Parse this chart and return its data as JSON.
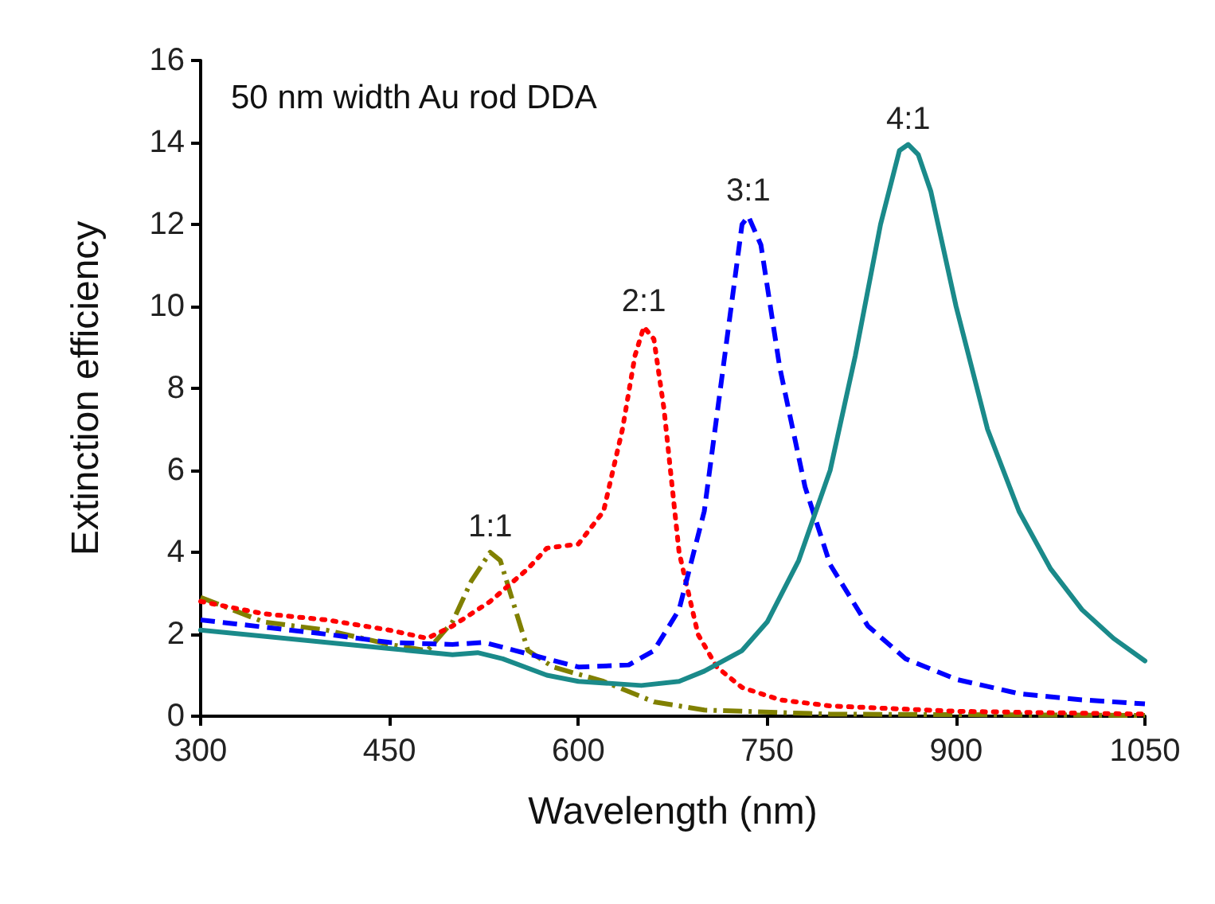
{
  "chart_data": {
    "type": "line",
    "title": "50 nm width Au rod DDA",
    "xlabel": "Wavelength (nm)",
    "ylabel": "Extinction efficiency",
    "xlim": [
      300,
      1050
    ],
    "xticks": [
      300,
      450,
      600,
      750,
      900,
      1050
    ],
    "ylim": [
      0,
      16
    ],
    "yticks": [
      0,
      2,
      4,
      6,
      8,
      10,
      12,
      14,
      16
    ],
    "grid": false,
    "legend": false,
    "marker": "none",
    "series": [
      {
        "name": "1:1",
        "color": "#808000",
        "line_style": "dashdot",
        "x": [
          300,
          350,
          400,
          450,
          480,
          500,
          515,
          530,
          538,
          550,
          560,
          580,
          620,
          660,
          700,
          800,
          1050
        ],
        "values": [
          2.9,
          2.3,
          2.1,
          1.75,
          1.6,
          2.3,
          3.3,
          4.0,
          3.8,
          2.6,
          1.6,
          1.2,
          0.85,
          0.35,
          0.15,
          0.05,
          0.02
        ]
      },
      {
        "name": "2:1",
        "color": "#ff0000",
        "line_style": "dotted",
        "x": [
          300,
          350,
          400,
          450,
          480,
          500,
          530,
          560,
          575,
          600,
          620,
          635,
          645,
          652,
          660,
          668,
          680,
          695,
          710,
          730,
          760,
          800,
          900,
          1050
        ],
        "values": [
          2.8,
          2.5,
          2.35,
          2.1,
          1.9,
          2.2,
          2.8,
          3.6,
          4.1,
          4.2,
          5,
          7,
          8.8,
          9.5,
          9.2,
          7.5,
          4,
          2,
          1.2,
          0.7,
          0.4,
          0.25,
          0.12,
          0.05
        ]
      },
      {
        "name": "3:1",
        "color": "#0000ff",
        "line_style": "dashed",
        "x": [
          300,
          400,
          450,
          500,
          525,
          550,
          600,
          640,
          660,
          680,
          700,
          715,
          730,
          735,
          745,
          760,
          780,
          800,
          830,
          860,
          900,
          950,
          1000,
          1050
        ],
        "values": [
          2.35,
          2.0,
          1.8,
          1.75,
          1.8,
          1.6,
          1.2,
          1.25,
          1.6,
          2.6,
          5,
          8.5,
          12,
          12.2,
          11.5,
          8.5,
          5.6,
          3.7,
          2.2,
          1.4,
          0.9,
          0.55,
          0.4,
          0.3
        ]
      },
      {
        "name": "4:1",
        "color": "#1a8a8a",
        "line_style": "solid",
        "x": [
          300,
          450,
          500,
          520,
          540,
          575,
          600,
          650,
          680,
          700,
          730,
          750,
          775,
          800,
          820,
          840,
          855,
          862,
          870,
          880,
          900,
          925,
          950,
          975,
          1000,
          1025,
          1050
        ],
        "values": [
          2.1,
          1.65,
          1.5,
          1.55,
          1.4,
          1.0,
          0.85,
          0.75,
          0.85,
          1.1,
          1.6,
          2.3,
          3.8,
          6,
          8.8,
          12,
          13.8,
          13.95,
          13.7,
          12.8,
          10,
          7,
          5,
          3.6,
          2.6,
          1.9,
          1.35
        ]
      }
    ]
  }
}
